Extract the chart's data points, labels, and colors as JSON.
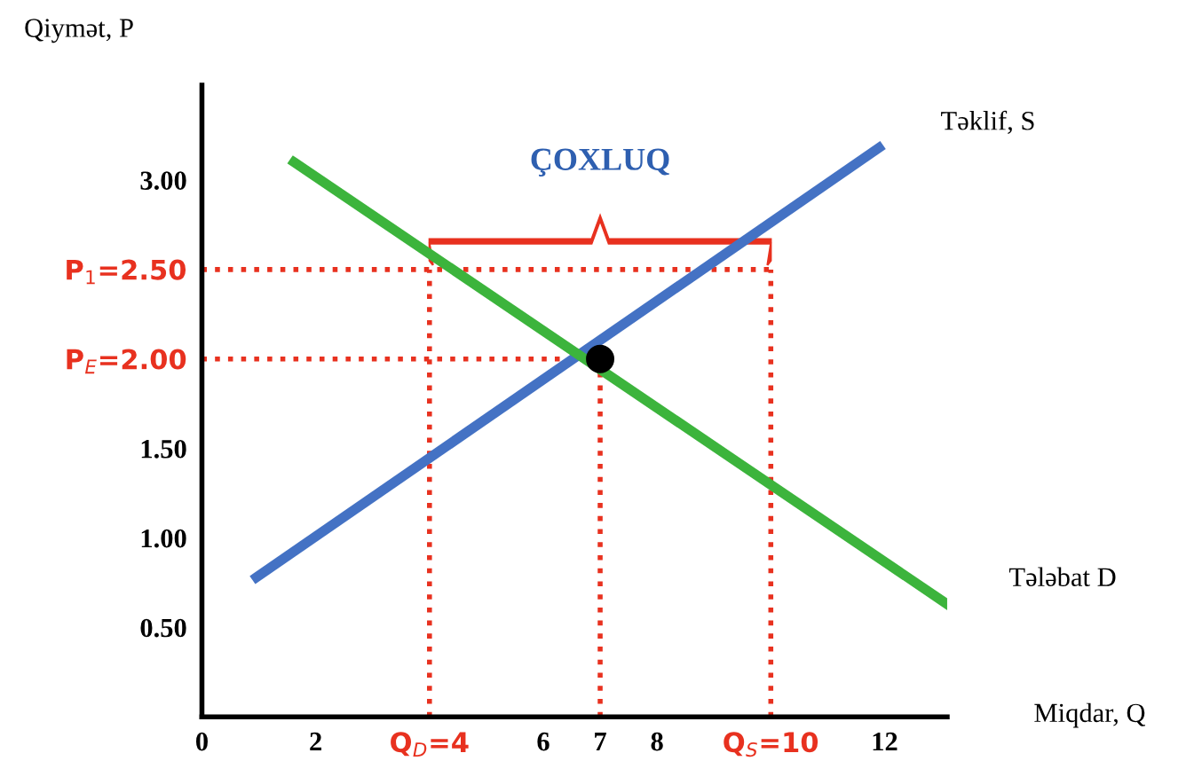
{
  "chart_data": {
    "type": "line",
    "ylabel": "Qiymət, P",
    "xlabel": "Miqdar, Q",
    "xlim": [
      0,
      13.1
    ],
    "ylim": [
      0,
      3.53
    ],
    "xticks": [
      0,
      2,
      {
        "value": 4,
        "label": "Q$_{D}$=4"
      },
      6,
      7,
      8,
      {
        "value": 10,
        "label": "Q$_{S}$=10"
      },
      12
    ],
    "yticks": [
      {
        "value": 0.5,
        "label": "0.50"
      },
      {
        "value": 1.0,
        "label": "1.00"
      },
      {
        "value": 1.5,
        "label": "1.50"
      },
      {
        "value": 2.0,
        "label": "P$_{E}$=2.00"
      },
      {
        "value": 2.5,
        "label": "P$_{1}$=2.50"
      },
      {
        "value": 3.0,
        "label": "3.00"
      }
    ],
    "series": [
      {
        "name": "Təklif, S",
        "color": "#4472c4",
        "x": [
          0.96,
          11.9
        ],
        "values": [
          0.78,
          3.18
        ]
      },
      {
        "name": "Tələbat D",
        "color": "#3cb43c",
        "x": [
          1.62,
          13.1
        ],
        "values": [
          3.1,
          0.63
        ]
      },
      {
        "color": "#e8311f",
        "line_style": "dotted",
        "x": [
          0,
          10
        ],
        "values": [
          2.5,
          2.5
        ]
      },
      {
        "color": "#e8311f",
        "line_style": "dotted",
        "x": [
          0,
          7
        ],
        "values": [
          2.0,
          2.0
        ]
      },
      {
        "color": "#e8311f",
        "line_style": "dotted",
        "x": [
          4,
          4
        ],
        "values": [
          0,
          2.5
        ]
      },
      {
        "color": "#e8311f",
        "line_style": "dotted",
        "x": [
          7,
          7
        ],
        "values": [
          0,
          2.0
        ]
      },
      {
        "color": "#e8311f",
        "line_style": "dotted",
        "x": [
          10,
          10
        ],
        "values": [
          0,
          2.5
        ]
      },
      {
        "type": "scatter",
        "color": "#000000",
        "x": [
          7
        ],
        "values": [
          2.0
        ]
      }
    ],
    "annotations": [
      {
        "text": "ÇOXLUQ",
        "x": 7,
        "y": 2.5
      }
    ],
    "grid": false,
    "legend": false
  }
}
